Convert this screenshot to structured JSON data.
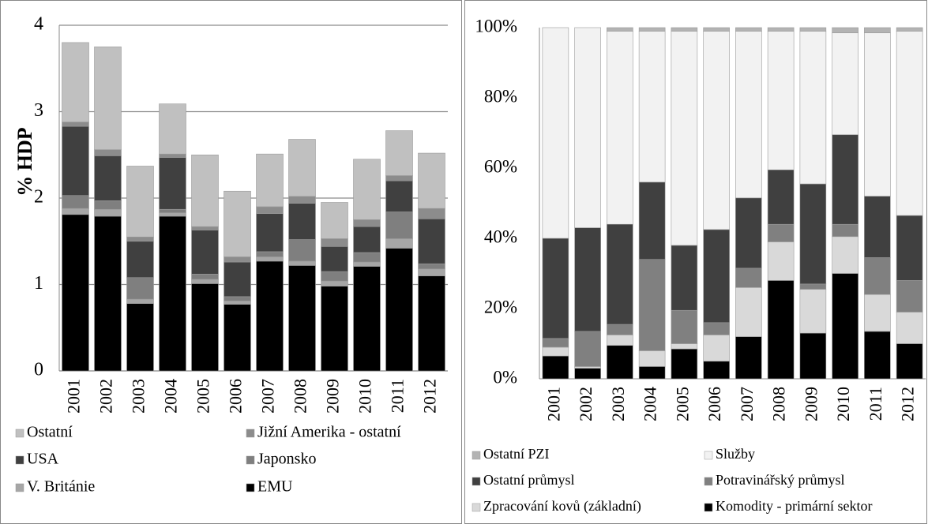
{
  "chart_data": [
    {
      "type": "stacked-bar",
      "y_label": "% HDP",
      "grid": true,
      "categories": [
        "2001",
        "2002",
        "2003",
        "2004",
        "2005",
        "2006",
        "2007",
        "2008",
        "2009",
        "2010",
        "2011",
        "2012"
      ],
      "ylim": [
        0,
        4
      ],
      "yticks": [
        0,
        1,
        2,
        3,
        4
      ],
      "series": [
        {
          "name": "EMU",
          "color": "#000000",
          "values": [
            1.81,
            1.79,
            0.78,
            1.79,
            1.01,
            0.77,
            1.27,
            1.22,
            0.98,
            1.21,
            1.42,
            1.1
          ]
        },
        {
          "name": "V. Británie",
          "color": "#a6a6a6",
          "values": [
            0.07,
            0.08,
            0.05,
            0.04,
            0.05,
            0.04,
            0.05,
            0.05,
            0.06,
            0.05,
            0.11,
            0.08
          ]
        },
        {
          "name": "Japonsko",
          "color": "#7f7f7f",
          "values": [
            0.15,
            0.1,
            0.25,
            0.04,
            0.06,
            0.05,
            0.06,
            0.25,
            0.11,
            0.11,
            0.31,
            0.06
          ]
        },
        {
          "name": "USA",
          "color": "#404040",
          "values": [
            0.8,
            0.52,
            0.42,
            0.6,
            0.51,
            0.4,
            0.44,
            0.42,
            0.29,
            0.3,
            0.36,
            0.52
          ]
        },
        {
          "name": "Jižní Amerika - ostatní",
          "color": "#8c8c8c",
          "values": [
            0.05,
            0.07,
            0.05,
            0.04,
            0.04,
            0.06,
            0.08,
            0.08,
            0.09,
            0.08,
            0.06,
            0.12
          ]
        },
        {
          "name": "Ostatní",
          "color": "#c0c0c0",
          "values": [
            0.92,
            1.19,
            0.82,
            0.58,
            0.83,
            0.76,
            0.61,
            0.66,
            0.42,
            0.7,
            0.52,
            0.64
          ]
        }
      ]
    },
    {
      "type": "stacked-bar",
      "grid": false,
      "categories": [
        "2001",
        "2002",
        "2003",
        "2004",
        "2005",
        "2006",
        "2007",
        "2008",
        "2009",
        "2010",
        "2011",
        "2012"
      ],
      "ylim": [
        0,
        100
      ],
      "yticks": [
        {
          "value": 0,
          "label": "0%"
        },
        {
          "value": 20,
          "label": "20%"
        },
        {
          "value": 40,
          "label": "40%"
        },
        {
          "value": 60,
          "label": "60%"
        },
        {
          "value": 80,
          "label": "80%"
        },
        {
          "value": 100,
          "label": "100%"
        }
      ],
      "series": [
        {
          "name": "Komodity - primární sektor",
          "color": "#000000",
          "values": [
            6.5,
            3,
            9.5,
            3.5,
            8.5,
            5,
            12,
            28,
            13,
            30,
            13.5,
            10
          ]
        },
        {
          "name": "Zpracování kovů (základní)",
          "color": "#d9d9d9",
          "values": [
            2.5,
            0.5,
            3,
            4.5,
            1.5,
            7.5,
            14,
            11,
            12.5,
            10.5,
            10.5,
            9
          ]
        },
        {
          "name": "Potravinářský průmysl",
          "color": "#808080",
          "values": [
            2.5,
            10,
            3,
            26,
            9.5,
            3.5,
            5.5,
            5,
            1.5,
            3.5,
            10.5,
            9
          ]
        },
        {
          "name": "Ostatní průmysl",
          "color": "#404040",
          "values": [
            28.5,
            29.5,
            28.5,
            22,
            18.5,
            26.5,
            20,
            15.5,
            28.5,
            25.5,
            17.5,
            18.5
          ]
        },
        {
          "name": "Služby",
          "color": "#f2f2f2",
          "values": [
            60,
            57,
            55,
            43,
            61,
            56.5,
            47.5,
            39.5,
            43.5,
            29,
            46.5,
            52.5
          ]
        },
        {
          "name": "Ostatní PZI",
          "color": "#b3b3b3",
          "values": [
            0,
            0,
            1,
            1,
            1,
            1,
            1,
            1,
            1,
            1.5,
            1.5,
            1
          ]
        }
      ]
    }
  ]
}
